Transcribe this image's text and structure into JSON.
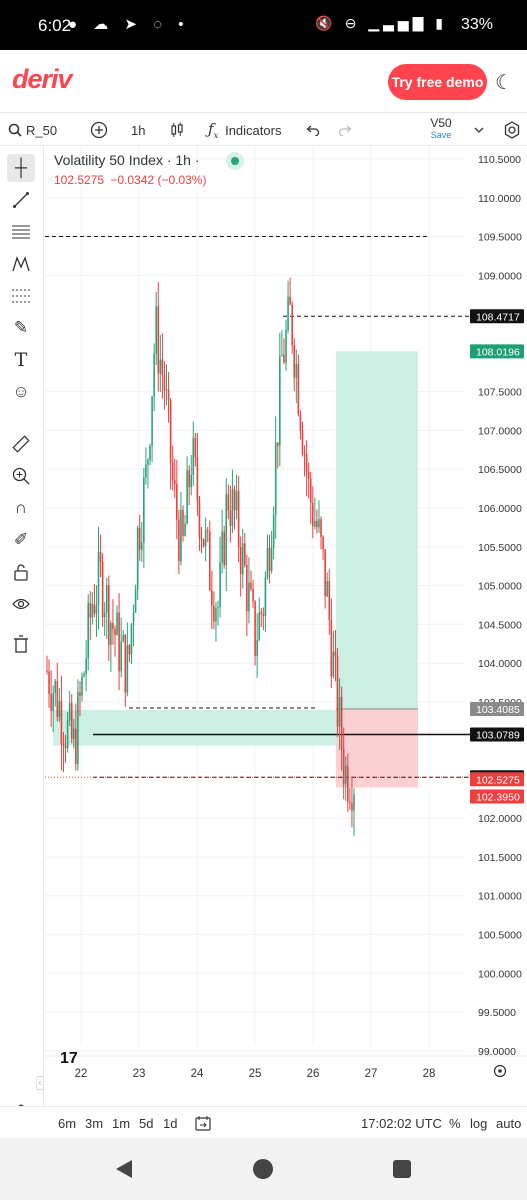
{
  "status_bar": {
    "time": "6:02",
    "left_icons": "● ☁ ➤ ◌ •",
    "right_icons": "🔇 ⊖ ▁▃▅▇ ▮",
    "battery": "33%"
  },
  "header": {
    "logo": "deriv",
    "demo_button": "Try free demo"
  },
  "toolbar": {
    "symbol": "R_50",
    "timeframe": "1h",
    "indicators": "Indicators",
    "template_name": "V50",
    "template_sub": "Save"
  },
  "chart": {
    "title": "Volatility 50 Index · 1h ·",
    "price": "102.5275",
    "change": "−0.0342 (−0.03%)",
    "y_axis_labels": [
      "110.5000",
      "110.0000",
      "109.5000",
      "109.0000",
      "107.5000",
      "107.0000",
      "106.5000",
      "106.0000",
      "105.5000",
      "105.0000",
      "104.5000",
      "104.0000",
      "103.5000",
      "102.0000",
      "101.5000",
      "101.0000",
      "100.5000",
      "100.0000",
      "99.5000",
      "99.0000"
    ],
    "x_axis_labels": [
      "22",
      "23",
      "24",
      "25",
      "26",
      "27",
      "28"
    ],
    "price_tags": [
      {
        "label": "108.4717",
        "value": 108.4717,
        "style": "dark"
      },
      {
        "label": "108.0196",
        "value": 108.0196,
        "style": "green"
      },
      {
        "label": "103.4085",
        "value": 103.4085,
        "style": "gray"
      },
      {
        "label": "103.0789",
        "value": 103.0789,
        "style": "dark"
      },
      {
        "label": "102.5276",
        "value": 102.5276,
        "style": "dark"
      },
      {
        "label": "102.5275",
        "value": 102.5275,
        "style": "red"
      },
      {
        "label": "102.3950",
        "value": 102.395,
        "style": "red"
      }
    ],
    "colors": {
      "up": "#2aa37a",
      "down": "#ec3f3f",
      "target_zone": "#cdeee3",
      "stop_zone": "#fbd0d3",
      "tag_dark": "#111111",
      "tag_green": "#1e9e74",
      "tag_red": "#ec3f3f",
      "tag_gray": "#8a8a8a"
    }
  },
  "bottom_bar": {
    "timeframes": [
      "6m",
      "3m",
      "1m",
      "5d",
      "1d"
    ],
    "clock": "17:02:02 UTC",
    "pct": "%",
    "log": "log",
    "auto": "auto"
  },
  "chart_data": {
    "type": "candlestick",
    "title": "Volatility 50 Index · 1h",
    "x_ticks": [
      "22",
      "23",
      "24",
      "25",
      "26",
      "27",
      "28"
    ],
    "ylim": [
      98.8,
      110.7
    ],
    "series": [
      {
        "name": "R_50",
        "close_path": [
          103.9,
          103.6,
          103.2,
          102.9,
          103.8,
          104.8,
          105.1,
          104.6,
          104.2,
          103.9,
          105.6,
          106.4,
          108.3,
          107.6,
          106.2,
          105.4,
          106.7,
          105.9,
          105.2,
          104.7,
          106.2,
          105.8,
          105.1,
          104.3,
          104.8,
          106.1,
          107.9,
          108.5,
          107.4,
          106.2,
          105.7,
          104.9,
          103.6,
          102.6,
          102.53
        ]
      }
    ],
    "levels": [
      {
        "value": 109.5,
        "style": "dashed"
      },
      {
        "value": 108.4717,
        "style": "dashed"
      },
      {
        "value": 103.4085,
        "style": "dashed"
      },
      {
        "value": 103.0789,
        "style": "solid"
      },
      {
        "value": 102.5276,
        "style": "dashed"
      }
    ],
    "zones": [
      {
        "name": "target",
        "from": 103.4085,
        "to": 108.0196
      },
      {
        "name": "stop",
        "from": 102.395,
        "to": 103.4085
      }
    ]
  }
}
